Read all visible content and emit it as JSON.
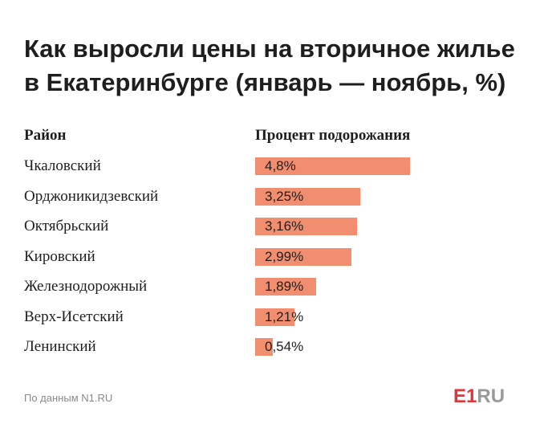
{
  "title_line1": "Как выросли цены на вторичное жилье",
  "title_line2": "в Екатеринбурге  (январь — ноябрь, %)",
  "header_district": "Район",
  "header_value": "Процент подорожания",
  "source": "По данным N1.RU",
  "logo": {
    "e1": "E1",
    "ru": "RU"
  },
  "colors": {
    "bar": "#f28e70"
  },
  "chart_data": {
    "type": "bar",
    "orientation": "horizontal",
    "title": "Как выросли цены на вторичное жилье в Екатеринбурге  (январь — ноябрь, %)",
    "categories": [
      "Чкаловский",
      "Орджоникидзевский",
      "Октябрьский",
      "Кировский",
      "Железнодорожный",
      "Верх-Исетский",
      "Ленинский"
    ],
    "values": [
      4.8,
      3.25,
      3.16,
      2.99,
      1.89,
      1.21,
      0.54
    ],
    "value_labels": [
      "4,8%",
      "3,25%",
      "3,16%",
      "2,99%",
      "1,89%",
      "1,21%",
      "0,54%"
    ],
    "xlabel": "Процент подорожания",
    "ylabel": "Район"
  }
}
